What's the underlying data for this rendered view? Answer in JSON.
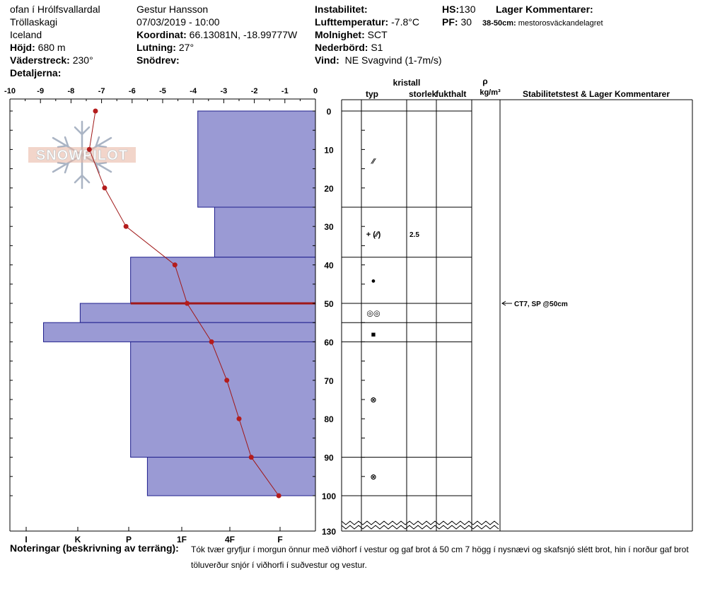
{
  "header": {
    "location_name": "ofan í Hrólfsvallardal",
    "region": "Tröllaskagi",
    "country": "Iceland",
    "elevation_label": "Höjd:",
    "elevation_value": "680 m",
    "aspect_label": "Väderstreck:",
    "aspect_value": "230°",
    "details_label": "Detaljerna:",
    "observer": "Gestur Hansson",
    "datetime": "07/03/2019 - 10:00",
    "coord_label": "Koordinat:",
    "coord_value": "66.13081N, -18.99777W",
    "slope_label": "Lutning:",
    "slope_value": "27°",
    "drift_label": "Snödrev:",
    "instability_label": "Instabilitet:",
    "airtemp_label": "Lufttemperatur:",
    "airtemp_value": "-7.8°C",
    "sky_label": "Molnighet:",
    "sky_value": "SCT",
    "precip_label": "Nederbörd:",
    "precip_value": "S1",
    "wind_label": "Vind:",
    "wind_value": "NE Svagvind (1-7m/s)",
    "hs_label": "HS:",
    "hs_value": "130",
    "pf_label": "PF:",
    "pf_value": "30",
    "layer_comments_label": "Lager Kommentarer:",
    "layer_comment_range": "38-50cm:",
    "layer_comment_text": "mestorosväckandelagret"
  },
  "columns": {
    "crystal": "kristall",
    "type": "typ",
    "size": "storlek",
    "moisture": "fukthalt",
    "rho": "ρ",
    "density_unit": "kg/m³",
    "stability": "Stabilitetstest & Lager Kommentarer"
  },
  "logo": {
    "text": "SNOWPILOT"
  },
  "notes": {
    "label": "Noteringar (beskrivning av terräng):",
    "text": "Tók tvær gryfjur í morgun önnur með viðhorf í vestur og gaf brot á 50 cm 7 högg  í nysnævi og skafsnjó slétt brot, hin í norður gaf brot töluverður snjór í viðhorfi í suðvestur og vestur."
  },
  "chart_data": {
    "type": "snow-profile",
    "temperature_axis": {
      "range": [
        -10,
        0
      ],
      "ticks": [
        -10,
        -9,
        -8,
        -7,
        -6,
        -5,
        -4,
        -3,
        -2,
        -1,
        0
      ]
    },
    "depth_axis": {
      "range": [
        0,
        100
      ],
      "break_at": 100,
      "bottom_label": "130",
      "ticks": [
        0,
        10,
        20,
        30,
        40,
        50,
        60,
        70,
        80,
        90,
        100
      ]
    },
    "hardness_axis": {
      "labels": [
        "I",
        "K",
        "P",
        "1F",
        "4F",
        "F"
      ]
    },
    "temperature_profile": [
      {
        "depth": 0,
        "temp": -7.2
      },
      {
        "depth": 10,
        "temp": -7.4
      },
      {
        "depth": 20,
        "temp": -6.9
      },
      {
        "depth": 30,
        "temp": -6.2
      },
      {
        "depth": 40,
        "temp": -4.6
      },
      {
        "depth": 50,
        "temp": -4.2
      },
      {
        "depth": 60,
        "temp": -3.4
      },
      {
        "depth": 70,
        "temp": -2.9
      },
      {
        "depth": 80,
        "temp": -2.5
      },
      {
        "depth": 90,
        "temp": -2.1
      },
      {
        "depth": 100,
        "temp": -1.2
      }
    ],
    "hardness_layers": [
      {
        "top": 0,
        "bottom": 25,
        "hardness": -3.85
      },
      {
        "top": 25,
        "bottom": 38,
        "hardness": -3.3
      },
      {
        "top": 38,
        "bottom": 50,
        "hardness": -6.05
      },
      {
        "top": 50,
        "bottom": 55,
        "hardness": -7.7
      },
      {
        "top": 55,
        "bottom": 60,
        "hardness": -8.9
      },
      {
        "top": 60,
        "bottom": 90,
        "hardness": -6.05
      },
      {
        "top": 90,
        "bottom": 100,
        "hardness": -5.5
      }
    ],
    "weak_layer_depth": 50,
    "layer_boundaries": [
      0,
      25,
      38,
      50,
      55,
      60,
      90,
      100
    ],
    "grain_forms": [
      {
        "depth": 13,
        "symbol": "⁄⁄",
        "size": ""
      },
      {
        "depth": 32,
        "symbol": "+ (⁄⁄)",
        "size": "2.5"
      },
      {
        "depth": 44,
        "symbol": "●",
        "size": ""
      },
      {
        "depth": 52.5,
        "symbol": "◎◎",
        "size": ""
      },
      {
        "depth": 58,
        "symbol": "■",
        "size": ""
      },
      {
        "depth": 75,
        "symbol": "⊗",
        "size": ""
      },
      {
        "depth": 95,
        "symbol": "⊗",
        "size": ""
      }
    ],
    "stability_tests": [
      {
        "depth": 50,
        "label": "CT7, SP @50cm"
      }
    ]
  }
}
